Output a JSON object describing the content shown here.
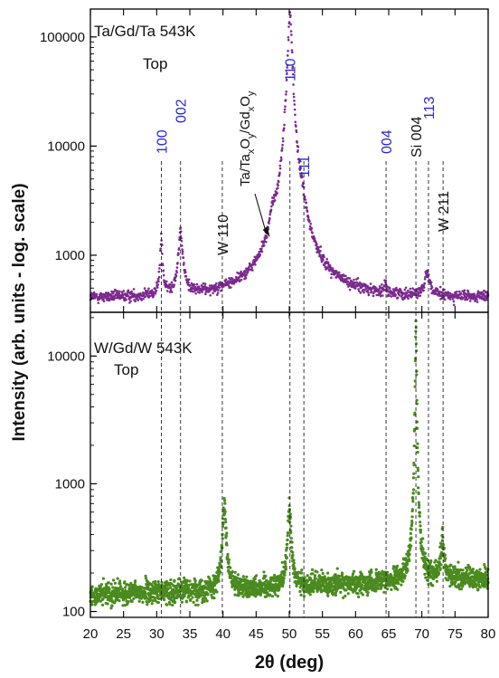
{
  "chart_data": [
    {
      "type": "scatter",
      "panel": "top",
      "title": "",
      "label_line1": "Ta/Gd/Ta 543K",
      "label_line2": "Top",
      "series": [
        {
          "color": "#7b2a8e",
          "baseline": 400,
          "noise": 0.035,
          "peaks": [
            {
              "x": 30.7,
              "height": 950,
              "width": 0.18
            },
            {
              "x": 33.6,
              "height": 1100,
              "width": 0.35
            },
            {
              "x": 47.5,
              "height": 950,
              "width": 0.35
            },
            {
              "x": 50.1,
              "height": 165000,
              "width": 0.28
            },
            {
              "x": 52.0,
              "height": 780,
              "width": 0.35
            },
            {
              "x": 64.5,
              "height": 60,
              "width": 0.2
            },
            {
              "x": 70.8,
              "height": 280,
              "width": 0.4
            }
          ]
        }
      ],
      "reference_lines": [
        {
          "x": 30.7,
          "label": "100",
          "color": "#2929d0"
        },
        {
          "x": 33.6,
          "label": "002",
          "color": "#2929d0"
        },
        {
          "x": 39.9,
          "label": "W 110",
          "color": "#111111"
        },
        {
          "x": 50.1,
          "label": "110",
          "color": "#2929d0"
        },
        {
          "x": 52.2,
          "label": "111",
          "color": "#2929d0"
        },
        {
          "x": 64.6,
          "label": "004",
          "color": "#2929d0"
        },
        {
          "x": 69.1,
          "label": "Si 004",
          "color": "#111111"
        },
        {
          "x": 71.0,
          "label": "113",
          "color": "#2929d0"
        },
        {
          "x": 73.2,
          "label": "W 211",
          "color": "#111111"
        }
      ],
      "annotation": {
        "text": "Ta/TaxOy/GdxOy",
        "base": "Ta/Ta",
        "sub1": "x",
        "mid1": "O",
        "sub2": "y",
        "mid2": "/Gd",
        "sub3": "x",
        "mid3": "O",
        "sub4": "y",
        "arrow_to_x": 47.5
      },
      "xlim": [
        20,
        80
      ],
      "ylim": [
        300,
        180000
      ],
      "yscale": "log",
      "yticks": [
        1000,
        10000,
        100000
      ],
      "ytick_labels": [
        "1000",
        "10000",
        "100000"
      ]
    },
    {
      "type": "scatter",
      "panel": "bottom",
      "title": "",
      "label_line1": "W/Gd/W 543K",
      "label_line2": "Top",
      "series": [
        {
          "color": "#4a8a1f",
          "baseline_start": 135,
          "baseline_end": 180,
          "noise": 0.06,
          "peaks": [
            {
              "x": 40.2,
              "height": 520,
              "width": 0.25
            },
            {
              "x": 50.0,
              "height": 480,
              "width": 0.25
            },
            {
              "x": 69.1,
              "height": 19000,
              "width": 0.08
            },
            {
              "x": 73.1,
              "height": 170,
              "width": 0.3
            }
          ]
        }
      ],
      "reference_lines_x": [
        30.7,
        33.6,
        39.9,
        50.1,
        52.2,
        64.6,
        69.1,
        71.0,
        73.2
      ],
      "xlim": [
        20,
        80
      ],
      "ylim": [
        90,
        22000
      ],
      "yscale": "log",
      "yticks": [
        100,
        1000,
        10000
      ],
      "ytick_labels": [
        "100",
        "1000",
        "10000"
      ]
    }
  ],
  "axes": {
    "xlabel": "2θ (deg)",
    "ylabel": "Intensity (arb. units - log. scale)",
    "xticks": [
      20,
      25,
      30,
      35,
      40,
      45,
      50,
      55,
      60,
      65,
      70,
      75,
      80
    ],
    "xtick_labels": [
      "20",
      "25",
      "30",
      "35",
      "40",
      "45",
      "50",
      "55",
      "60",
      "65",
      "70",
      "75",
      "80"
    ]
  }
}
